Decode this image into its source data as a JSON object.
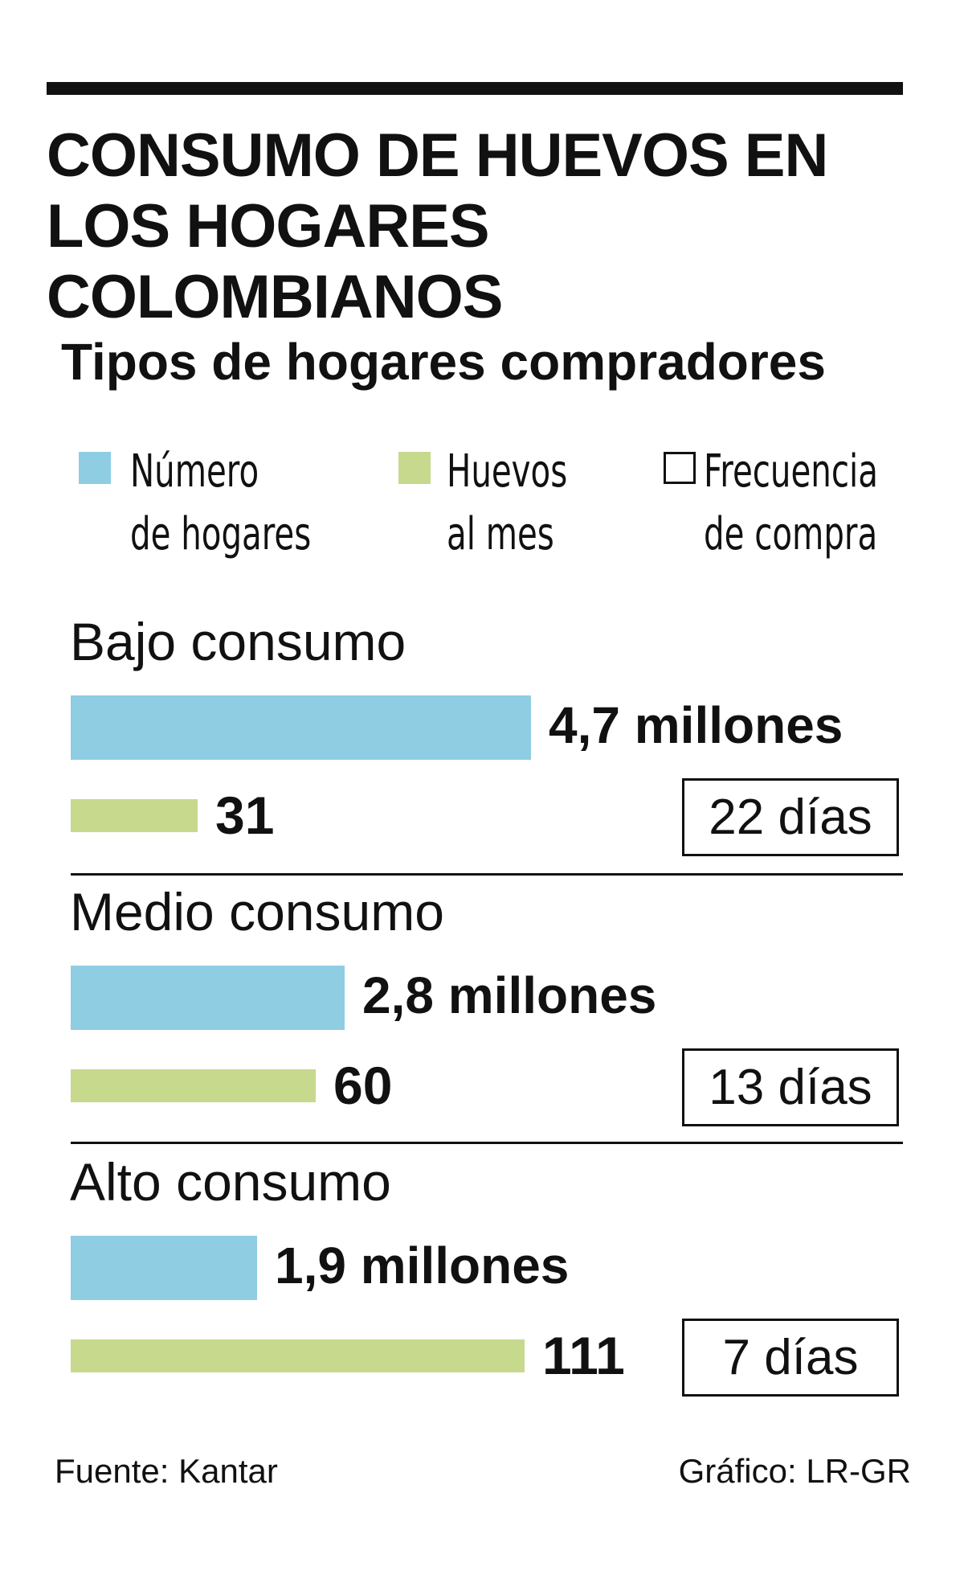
{
  "colors": {
    "households": "#8fcde3",
    "eggs": "#c6d98d",
    "frequency_fill": "#ffffff",
    "text": "#111111"
  },
  "title_lines": [
    "CONSUMO DE HUEVOS EN",
    "LOS HOGARES COLOMBIANOS"
  ],
  "subtitle": "Tipos de hogares compradores",
  "legend": [
    {
      "line1": "Número",
      "line2": "de hogares",
      "icon": "blue-square-swatch"
    },
    {
      "line1": "Huevos",
      "line2": "al mes",
      "icon": "green-square-swatch"
    },
    {
      "line1": "Frecuencia",
      "line2": "de compra",
      "icon": "outlined-square-swatch"
    }
  ],
  "chart_data": {
    "type": "bar",
    "title": "Tipos de hogares compradores",
    "categories": [
      "Bajo consumo",
      "Medio consumo",
      "Alto consumo"
    ],
    "series": [
      {
        "name": "Número de hogares",
        "unit": "millones",
        "values": [
          4.7,
          2.8,
          1.9
        ],
        "labels": [
          "4,7 millones",
          "2,8 millones",
          "1,9 millones"
        ]
      },
      {
        "name": "Huevos al mes",
        "values": [
          31,
          60,
          111
        ],
        "labels": [
          "31",
          "60",
          "111"
        ]
      },
      {
        "name": "Frecuencia de compra",
        "unit": "días",
        "values": [
          22,
          13,
          7
        ],
        "labels": [
          "22 días",
          "13 días",
          "7 días"
        ]
      }
    ]
  },
  "footer": {
    "source": "Fuente: Kantar",
    "credit": "Gráfico: LR-GR"
  }
}
